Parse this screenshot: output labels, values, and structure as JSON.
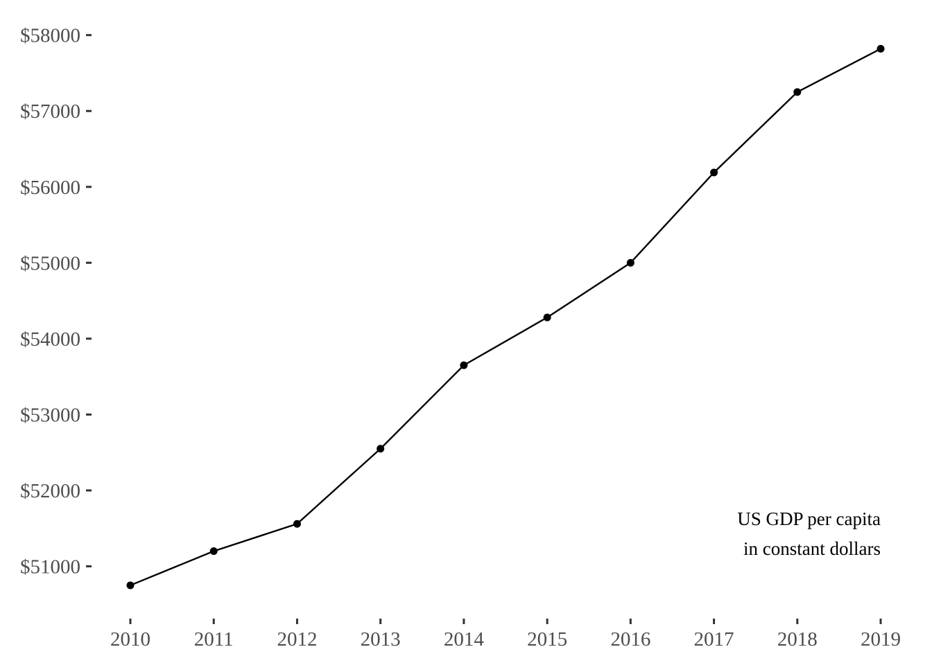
{
  "chart_data": {
    "type": "line",
    "x": [
      "2010",
      "2011",
      "2012",
      "2013",
      "2014",
      "2015",
      "2016",
      "2017",
      "2018",
      "2019"
    ],
    "series": [
      {
        "values": [
          50750,
          51200,
          51560,
          52550,
          53650,
          54280,
          55000,
          56190,
          57250,
          57820
        ]
      }
    ],
    "y_ticks": [
      51000,
      52000,
      53000,
      54000,
      55000,
      56000,
      57000,
      58000
    ],
    "y_tick_labels": [
      "$51000",
      "$52000",
      "$53000",
      "$54000",
      "$55000",
      "$56000",
      "$57000",
      "$58000"
    ],
    "x_tick_labels": [
      "2010",
      "2011",
      "2012",
      "2013",
      "2014",
      "2015",
      "2016",
      "2017",
      "2018",
      "2019"
    ],
    "ylim": [
      50430,
      58280
    ],
    "annotation": {
      "lines": [
        "US GDP per capita",
        "in constant dollars"
      ],
      "placement": "bottom-right"
    },
    "grid": false,
    "line_color": "#000000",
    "marker_color": "#000000",
    "tick_label_color": "#4d4d4d"
  }
}
